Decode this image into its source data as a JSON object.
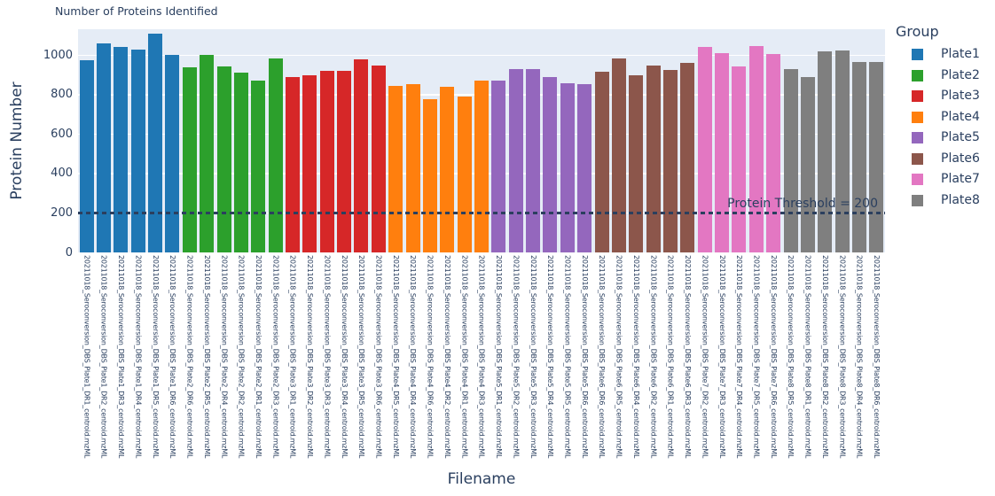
{
  "chart_data": {
    "type": "bar",
    "title": "Number of Proteins Identified",
    "xlabel": "Filename",
    "ylabel": "Protein Number",
    "ylim": [
      0,
      1132
    ],
    "y_ticks": [
      0,
      200,
      400,
      600,
      800,
      1000
    ],
    "grid": true,
    "plot_bg": "#e5ecf6",
    "text_color": "#2a3f5f",
    "legend": {
      "title": "Group",
      "position": "right"
    },
    "threshold_line": {
      "y": 200,
      "label": "Protein Threshold = 200",
      "style": "dashed",
      "color": "#2b3f5e"
    },
    "groups": [
      {
        "name": "Plate1",
        "color": "#1f77b4",
        "bars": [
          {
            "dr": "DR1",
            "value": 975,
            "label": "20211018_Seroconversion_DBS_Plate1_DR1_centroid.mzML"
          },
          {
            "dr": "DR2",
            "value": 1060,
            "label": "20211018_Seroconversion_DBS_Plate1_DR2_centroid.mzML"
          },
          {
            "dr": "DR3",
            "value": 1040,
            "label": "20211018_Seroconversion_DBS_Plate1_DR3_centroid.mzML"
          },
          {
            "dr": "DR4",
            "value": 1030,
            "label": "20211018_Seroconversion_DBS_Plate1_DR4_centroid.mzML"
          },
          {
            "dr": "DR5",
            "value": 1110,
            "label": "20211018_Seroconversion_DBS_Plate1_DR5_centroid.mzML"
          },
          {
            "dr": "DR6",
            "value": 1000,
            "label": "20211018_Seroconversion_DBS_Plate1_DR6_centroid.mzML"
          }
        ]
      },
      {
        "name": "Plate2",
        "color": "#2ca02c",
        "bars": [
          {
            "dr": "DR6",
            "value": 940,
            "label": "20211018_Seroconversion_DBS_Plate2_DR6_centroid.mzML"
          },
          {
            "dr": "DR5",
            "value": 1000,
            "label": "20211018_Seroconversion_DBS_Plate2_DR5_centroid.mzML"
          },
          {
            "dr": "DR4",
            "value": 945,
            "label": "20211018_Seroconversion_DBS_Plate2_DR4_centroid.mzML"
          },
          {
            "dr": "DR2",
            "value": 910,
            "label": "20211018_Seroconversion_DBS_Plate2_DR2_centroid.mzML"
          },
          {
            "dr": "DR1",
            "value": 870,
            "label": "20211018_Seroconversion_DBS_Plate2_DR1_centroid.mzML"
          },
          {
            "dr": "DR3",
            "value": 985,
            "label": "20211018_Seroconversion_DBS_Plate2_DR3_centroid.mzML"
          }
        ]
      },
      {
        "name": "Plate3",
        "color": "#d62728",
        "bars": [
          {
            "dr": "DR1",
            "value": 890,
            "label": "20211018_Seroconversion_DBS_Plate3_DR1_centroid.mzML"
          },
          {
            "dr": "DR2",
            "value": 900,
            "label": "20211018_Seroconversion_DBS_Plate3_DR2_centroid.mzML"
          },
          {
            "dr": "DR3",
            "value": 920,
            "label": "20211018_Seroconversion_DBS_Plate3_DR3_centroid.mzML"
          },
          {
            "dr": "DR4",
            "value": 920,
            "label": "20211018_Seroconversion_DBS_Plate3_DR4_centroid.mzML"
          },
          {
            "dr": "DR5",
            "value": 980,
            "label": "20211018_Seroconversion_DBS_Plate3_DR5_centroid.mzML"
          },
          {
            "dr": "DR6",
            "value": 950,
            "label": "20211018_Seroconversion_DBS_Plate3_DR6_centroid.mzML"
          }
        ]
      },
      {
        "name": "Plate4",
        "color": "#ff7f0e",
        "bars": [
          {
            "dr": "DR5",
            "value": 845,
            "label": "20211018_Seroconversion_DBS_Plate4_DR5_centroid.mzML"
          },
          {
            "dr": "DR4",
            "value": 855,
            "label": "20211018_Seroconversion_DBS_Plate4_DR4_centroid.mzML"
          },
          {
            "dr": "DR6",
            "value": 775,
            "label": "20211018_Seroconversion_DBS_Plate4_DR6_centroid.mzML"
          },
          {
            "dr": "DR2",
            "value": 840,
            "label": "20211018_Seroconversion_DBS_Plate4_DR2_centroid.mzML"
          },
          {
            "dr": "DR1",
            "value": 790,
            "label": "20211018_Seroconversion_DBS_Plate4_DR1_centroid.mzML"
          },
          {
            "dr": "DR3",
            "value": 870,
            "label": "20211018_Seroconversion_DBS_Plate4_DR3_centroid.mzML"
          }
        ]
      },
      {
        "name": "Plate5",
        "color": "#9467bd",
        "bars": [
          {
            "dr": "DR1",
            "value": 870,
            "label": "20211018_Seroconversion_DBS_Plate5_DR1_centroid.mzML"
          },
          {
            "dr": "DR2",
            "value": 930,
            "label": "20211018_Seroconversion_DBS_Plate5_DR2_centroid.mzML"
          },
          {
            "dr": "DR3",
            "value": 930,
            "label": "20211018_Seroconversion_DBS_Plate5_DR3_centroid.mzML"
          },
          {
            "dr": "DR4",
            "value": 890,
            "label": "20211018_Seroconversion_DBS_Plate5_DR4_centroid.mzML"
          },
          {
            "dr": "DR5",
            "value": 860,
            "label": "20211018_Seroconversion_DBS_Plate5_DR5_centroid.mzML"
          },
          {
            "dr": "DR6",
            "value": 855,
            "label": "20211018_Seroconversion_DBS_Plate5_DR6_centroid.mzML"
          }
        ]
      },
      {
        "name": "Plate6",
        "color": "#8c564b",
        "bars": [
          {
            "dr": "DR6",
            "value": 915,
            "label": "20211018_Seroconversion_DBS_Plate6_DR6_centroid.mzML"
          },
          {
            "dr": "DR5",
            "value": 985,
            "label": "20211018_Seroconversion_DBS_Plate6_DR5_centroid.mzML"
          },
          {
            "dr": "DR4",
            "value": 900,
            "label": "20211018_Seroconversion_DBS_Plate6_DR4_centroid.mzML"
          },
          {
            "dr": "DR2",
            "value": 950,
            "label": "20211018_Seroconversion_DBS_Plate6_DR2_centroid.mzML"
          },
          {
            "dr": "DR1",
            "value": 925,
            "label": "20211018_Seroconversion_DBS_Plate6_DR1_centroid.mzML"
          },
          {
            "dr": "DR3",
            "value": 960,
            "label": "20211018_Seroconversion_DBS_Plate6_DR3_centroid.mzML"
          }
        ]
      },
      {
        "name": "Plate7",
        "color": "#e377c2",
        "bars": [
          {
            "dr": "DR2",
            "value": 1040,
            "label": "20211018_Seroconversion_DBS_Plate7_DR2_centroid.mzML"
          },
          {
            "dr": "DR3",
            "value": 1010,
            "label": "20211018_Seroconversion_DBS_Plate7_DR3_centroid.mzML"
          },
          {
            "dr": "DR4",
            "value": 945,
            "label": "20211018_Seroconversion_DBS_Plate7_DR4_centroid.mzML"
          },
          {
            "dr": "DR5",
            "value": 1045,
            "label": "20211018_Seroconversion_DBS_Plate7_DR5_centroid.mzML"
          },
          {
            "dr": "DR6",
            "value": 1005,
            "label": "20211018_Seroconversion_DBS_Plate7_DR6_centroid.mzML"
          }
        ]
      },
      {
        "name": "Plate8",
        "color": "#7f7f7f",
        "bars": [
          {
            "dr": "DR5",
            "value": 930,
            "label": "20211018_Seroconversion_DBS_Plate8_DR5_centroid.mzML"
          },
          {
            "dr": "DR1",
            "value": 890,
            "label": "20211018_Seroconversion_DBS_Plate8_DR1_centroid.mzML"
          },
          {
            "dr": "DR2",
            "value": 1020,
            "label": "20211018_Seroconversion_DBS_Plate8_DR2_centroid.mzML"
          },
          {
            "dr": "DR3",
            "value": 1025,
            "label": "20211018_Seroconversion_DBS_Plate8_DR3_centroid.mzML"
          },
          {
            "dr": "DR4",
            "value": 965,
            "label": "20211018_Seroconversion_DBS_Plate8_DR4_centroid.mzML"
          },
          {
            "dr": "DR6",
            "value": 965,
            "label": "20211018_Seroconversion_DBS_Plate8_DR6_centroid.mzML"
          }
        ]
      }
    ]
  }
}
